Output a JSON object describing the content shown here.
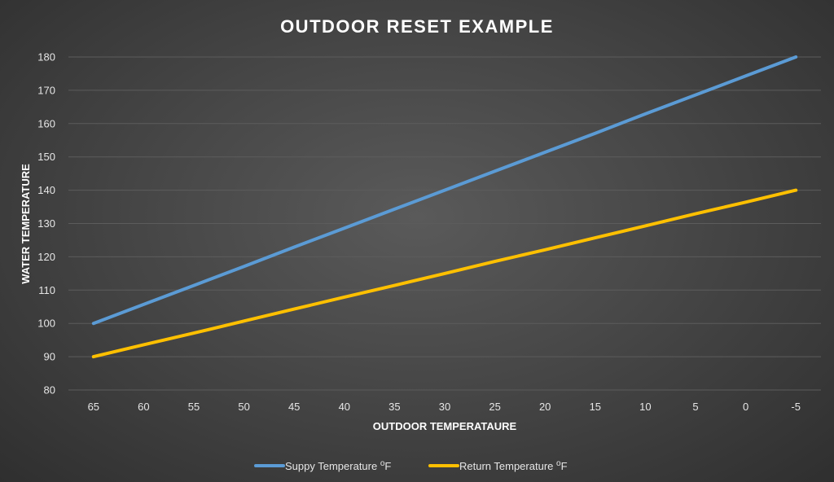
{
  "chart_data": {
    "type": "line",
    "title": "OUTDOOR RESET EXAMPLE",
    "xlabel": "OUTDOOR TEMPERATAURE",
    "ylabel": "WATER TEMPERATURE",
    "categories": [
      "65",
      "60",
      "55",
      "50",
      "45",
      "40",
      "35",
      "30",
      "25",
      "20",
      "15",
      "10",
      "5",
      "0",
      "-5"
    ],
    "ylim": [
      80,
      180
    ],
    "yticks": [
      "80",
      "90",
      "100",
      "110",
      "120",
      "130",
      "140",
      "150",
      "160",
      "170",
      "180"
    ],
    "grid": true,
    "legend_position": "bottom",
    "series": [
      {
        "name": "Suppy Temperature",
        "unit": "oF",
        "color": "#5b9bd5",
        "values": [
          100,
          105.7,
          111.4,
          117.1,
          122.9,
          128.6,
          134.3,
          140,
          145.7,
          151.4,
          157.1,
          162.9,
          168.6,
          174.3,
          180
        ]
      },
      {
        "name": "Return Temperature",
        "unit": "oF",
        "color": "#ffc000",
        "values": [
          90,
          93.6,
          97.1,
          100.7,
          104.3,
          107.9,
          111.4,
          115,
          118.6,
          122.1,
          125.7,
          129.3,
          132.9,
          136.4,
          140
        ]
      }
    ]
  }
}
